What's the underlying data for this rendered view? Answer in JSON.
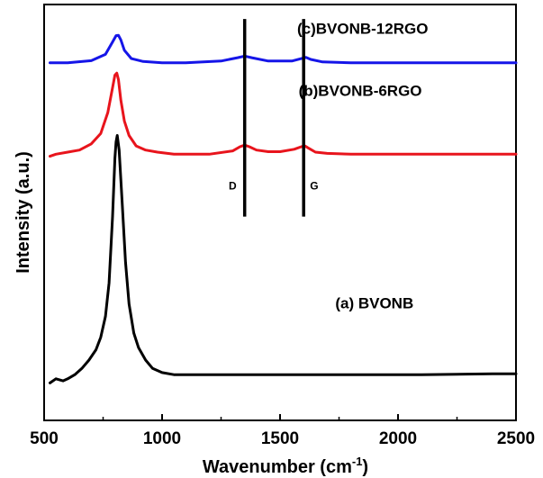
{
  "chart_data": {
    "type": "line",
    "xlabel": "Wavenumber (cm",
    "xlabel_sup": "-1",
    "xlabel_tail": ")",
    "ylabel": "Intensity (a.u.)",
    "xlim": [
      500,
      2500
    ],
    "ylim": [
      0,
      1
    ],
    "x_ticks": [
      500,
      1000,
      1500,
      2000,
      2500
    ],
    "y_tick_labels": "none",
    "grid": false,
    "series": [
      {
        "label": "(a) BVONB",
        "color": "#000000",
        "baseline": 0.11,
        "x": [
          525,
          550,
          580,
          600,
          630,
          660,
          690,
          720,
          740,
          760,
          775,
          790,
          800,
          805,
          810,
          818,
          830,
          845,
          860,
          880,
          900,
          930,
          960,
          1000,
          1050,
          1200,
          1500,
          1800,
          2100,
          2400,
          2500
        ],
        "offset": [
          -0.02,
          -0.01,
          -0.015,
          -0.01,
          0.0,
          0.015,
          0.035,
          0.06,
          0.09,
          0.14,
          0.22,
          0.38,
          0.52,
          0.56,
          0.575,
          0.54,
          0.42,
          0.27,
          0.17,
          0.1,
          0.065,
          0.035,
          0.015,
          0.005,
          0.0,
          0.0,
          0.0,
          0.0,
          0.0,
          0.002,
          0.002
        ]
      },
      {
        "label": "(b) BVONB-6RGO",
        "color": "#e8141c",
        "baseline": 0.64,
        "x": [
          525,
          550,
          600,
          650,
          700,
          740,
          770,
          790,
          800,
          808,
          815,
          825,
          840,
          860,
          890,
          930,
          980,
          1050,
          1200,
          1300,
          1330,
          1350,
          1370,
          1400,
          1450,
          1500,
          1560,
          1590,
          1605,
          1620,
          1650,
          1700,
          1800,
          2000,
          2200,
          2500
        ],
        "offset": [
          -0.005,
          0.0,
          0.005,
          0.01,
          0.025,
          0.05,
          0.1,
          0.16,
          0.19,
          0.195,
          0.18,
          0.13,
          0.08,
          0.045,
          0.02,
          0.01,
          0.005,
          0.0,
          0.0,
          0.008,
          0.018,
          0.022,
          0.018,
          0.01,
          0.006,
          0.006,
          0.012,
          0.018,
          0.02,
          0.015,
          0.005,
          0.002,
          0.0,
          0.0,
          0.0,
          0.0
        ]
      },
      {
        "label": "(c) BVONB-12RGO",
        "color": "#1515e8",
        "baseline": 0.86,
        "x": [
          525,
          600,
          700,
          760,
          790,
          805,
          815,
          825,
          840,
          870,
          920,
          1000,
          1100,
          1250,
          1320,
          1350,
          1380,
          1450,
          1550,
          1590,
          1610,
          1630,
          1680,
          1800,
          2000,
          2200,
          2500
        ],
        "offset": [
          0.0,
          0.0,
          0.005,
          0.02,
          0.05,
          0.065,
          0.066,
          0.055,
          0.03,
          0.01,
          0.003,
          0.0,
          0.0,
          0.004,
          0.012,
          0.016,
          0.012,
          0.004,
          0.004,
          0.01,
          0.013,
          0.008,
          0.002,
          0.0,
          0.0,
          0.0,
          0.0
        ]
      }
    ],
    "band_markers": [
      {
        "label": "D",
        "x": 1350
      },
      {
        "label": "G",
        "x": 1600
      }
    ],
    "annotations": [
      {
        "text": "(c)BVONB-12RGO",
        "x": 1850,
        "y": 0.93
      },
      {
        "text": "(b)BVONB-6RGO",
        "x": 1840,
        "y": 0.78
      },
      {
        "text": "(a) BVONB",
        "x": 1900,
        "y": 0.27
      }
    ]
  }
}
